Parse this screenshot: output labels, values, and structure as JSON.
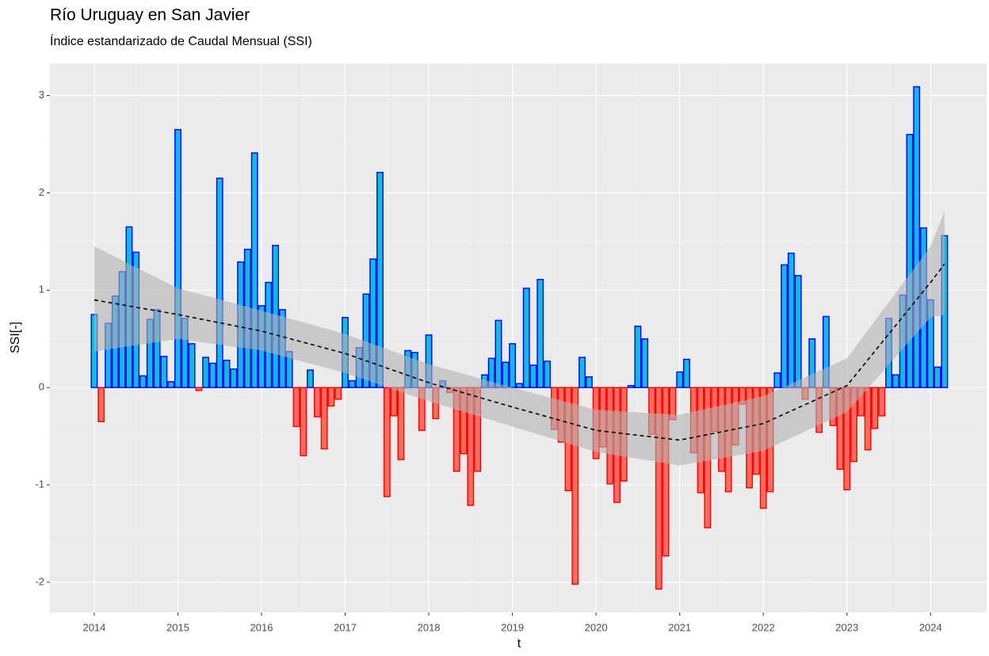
{
  "chart_data": {
    "type": "bar",
    "title": "Río Uruguay en San Javier",
    "subtitle": "Índice estandarizado de Caudal Mensual (SSI)",
    "x_label": "t",
    "y_label": "SSI[-]",
    "x": [
      2014,
      2014.083,
      2014.167,
      2014.25,
      2014.333,
      2014.417,
      2014.5,
      2014.583,
      2014.667,
      2014.75,
      2014.833,
      2014.917,
      2015,
      2015.083,
      2015.167,
      2015.25,
      2015.333,
      2015.417,
      2015.5,
      2015.583,
      2015.667,
      2015.75,
      2015.833,
      2015.917,
      2016,
      2016.083,
      2016.167,
      2016.25,
      2016.333,
      2016.417,
      2016.5,
      2016.583,
      2016.667,
      2016.75,
      2016.833,
      2016.917,
      2017,
      2017.083,
      2017.167,
      2017.25,
      2017.333,
      2017.417,
      2017.5,
      2017.583,
      2017.667,
      2017.75,
      2017.833,
      2017.917,
      2018,
      2018.083,
      2018.167,
      2018.25,
      2018.333,
      2018.417,
      2018.5,
      2018.583,
      2018.667,
      2018.75,
      2018.833,
      2018.917,
      2019,
      2019.083,
      2019.167,
      2019.25,
      2019.333,
      2019.417,
      2019.5,
      2019.583,
      2019.667,
      2019.75,
      2019.833,
      2019.917,
      2020,
      2020.083,
      2020.167,
      2020.25,
      2020.333,
      2020.417,
      2020.5,
      2020.583,
      2020.667,
      2020.75,
      2020.833,
      2020.917,
      2021,
      2021.083,
      2021.167,
      2021.25,
      2021.333,
      2021.417,
      2021.5,
      2021.583,
      2021.667,
      2021.75,
      2021.833,
      2021.917,
      2022,
      2022.083,
      2022.167,
      2022.25,
      2022.333,
      2022.417,
      2022.5,
      2022.583,
      2022.667,
      2022.75,
      2022.833,
      2022.917,
      2023,
      2023.083,
      2023.167,
      2023.25,
      2023.333,
      2023.417,
      2023.5,
      2023.583,
      2023.667,
      2023.75,
      2023.833,
      2023.917,
      2024,
      2024.083,
      2024.167
    ],
    "values": [
      0.75,
      -0.35,
      0.66,
      0.94,
      1.19,
      1.65,
      1.39,
      0.12,
      0.7,
      0.8,
      0.32,
      0.06,
      2.65,
      0.71,
      0.45,
      -0.03,
      0.31,
      0.25,
      2.15,
      0.28,
      0.19,
      1.29,
      1.42,
      2.41,
      0.84,
      1.08,
      1.46,
      0.8,
      0.37,
      -0.4,
      -0.7,
      0.18,
      -0.3,
      -0.63,
      -0.19,
      -0.12,
      0.72,
      0.07,
      0.41,
      0.96,
      1.32,
      2.21,
      -1.12,
      -0.29,
      -0.74,
      0.38,
      0.36,
      -0.44,
      0.54,
      -0.32,
      0.07,
      -0.05,
      -0.86,
      -0.68,
      -1.21,
      -0.86,
      0.13,
      0.3,
      0.69,
      0.26,
      0.45,
      0.04,
      1.02,
      0.23,
      1.11,
      0.27,
      -0.43,
      -0.56,
      -1.06,
      -2.02,
      0.31,
      0.11,
      -0.73,
      -0.61,
      -0.99,
      -1.18,
      -0.96,
      0.02,
      0.63,
      0.5,
      -0.48,
      -2.07,
      -1.73,
      -0.33,
      0.16,
      0.29,
      -0.67,
      -1.08,
      -1.44,
      -0.45,
      -0.86,
      -1.07,
      -0.59,
      -0.17,
      -1.03,
      -0.89,
      -1.24,
      -1.07,
      0.15,
      1.26,
      1.38,
      1.15,
      -0.12,
      0.5,
      -0.46,
      0.73,
      -0.39,
      -0.84,
      -1.05,
      -0.76,
      -0.29,
      -0.64,
      -0.42,
      -0.29,
      0.71,
      0.13,
      0.95,
      2.6,
      3.09,
      1.64,
      0.9,
      0.21,
      1.56
    ],
    "bar_colors": {
      "positive": {
        "fill": "#12b9e3",
        "stroke": "#0000ff"
      },
      "negative": {
        "fill": "#ff6b5e",
        "stroke": "#ff0000"
      }
    },
    "trend": {
      "x": [
        2014,
        2015,
        2016,
        2017,
        2018,
        2019,
        2020,
        2021,
        2022,
        2023,
        2024,
        2024.167
      ],
      "values": [
        0.9,
        0.75,
        0.58,
        0.35,
        0.05,
        -0.2,
        -0.44,
        -0.54,
        -0.37,
        0.02,
        1.08,
        1.27
      ],
      "lower": [
        0.37,
        0.5,
        0.38,
        0.15,
        -0.14,
        -0.4,
        -0.66,
        -0.8,
        -0.65,
        -0.25,
        0.72,
        0.75
      ],
      "upper": [
        1.45,
        1.02,
        0.79,
        0.55,
        0.24,
        0.0,
        -0.23,
        -0.28,
        -0.09,
        0.3,
        1.45,
        1.81
      ],
      "color": "#000000",
      "band_color": "#b3b3b3"
    },
    "xlim": [
      2013.47,
      2024.67
    ],
    "xticks": [
      2014,
      2015,
      2016,
      2017,
      2018,
      2019,
      2020,
      2021,
      2022,
      2023,
      2024
    ],
    "ylim": [
      -2.31,
      3.33
    ],
    "yticks": [
      -2,
      -1,
      0,
      1,
      2,
      3
    ],
    "grid": true
  }
}
